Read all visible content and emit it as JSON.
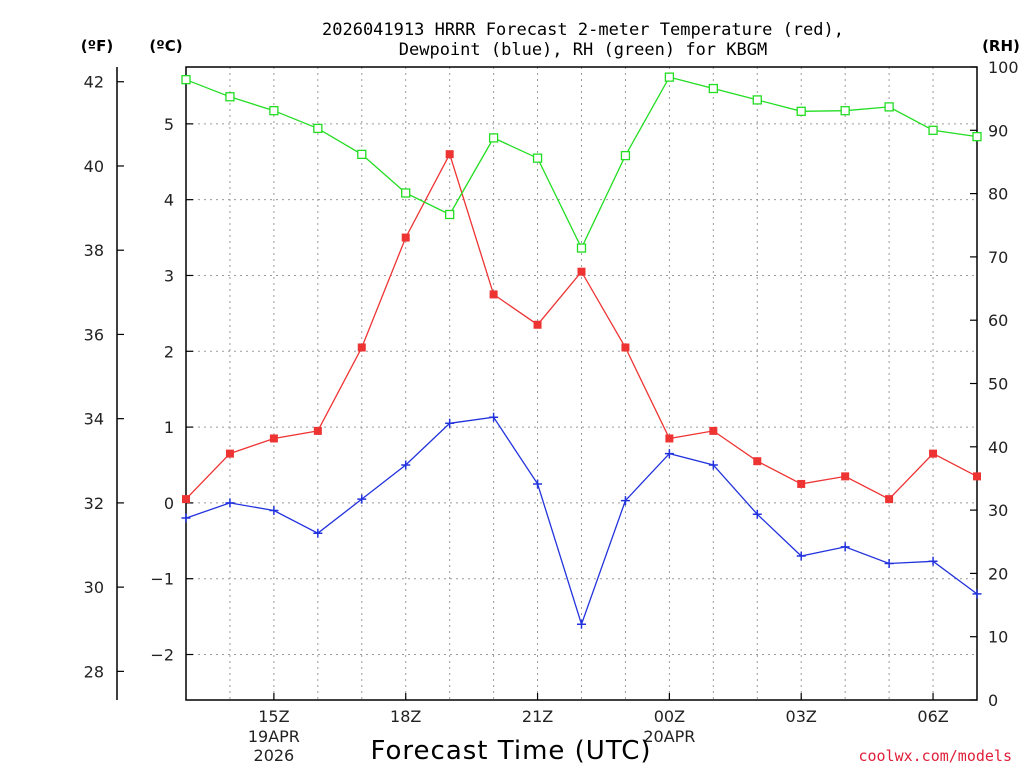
{
  "chart_data": {
    "type": "line",
    "title_line1": "2026041913 HRRR Forecast 2-meter Temperature (red),",
    "title_line2": "Dewpoint (blue), RH (green) for KBGM",
    "xlabel": "Forecast Time (UTC)",
    "credit": "coolwx.com/models",
    "axes": {
      "fahrenheit": {
        "unit_label": "(ºF)",
        "ticks": [
          28,
          30,
          32,
          34,
          36,
          38,
          40,
          42
        ]
      },
      "celsius": {
        "unit_label": "(ºC)",
        "ylim": [
          -2.6,
          5.75
        ],
        "ticks": [
          -2,
          -1,
          0,
          1,
          2,
          3,
          4,
          5
        ]
      },
      "rh": {
        "unit_label": "(RH)",
        "ylim": [
          0,
          100
        ],
        "ticks": [
          0,
          10,
          20,
          30,
          40,
          50,
          60,
          70,
          80,
          90,
          100
        ]
      }
    },
    "x_hours": [
      13,
      14,
      15,
      16,
      17,
      18,
      19,
      20,
      21,
      22,
      23,
      24,
      25,
      26,
      27,
      28,
      29,
      30,
      31
    ],
    "x_range": [
      13,
      31
    ],
    "x_ticks": [
      {
        "hour": 15,
        "label": "15Z",
        "sub1": "19APR",
        "sub2": "2026"
      },
      {
        "hour": 18,
        "label": "18Z",
        "sub1": "",
        "sub2": ""
      },
      {
        "hour": 21,
        "label": "21Z",
        "sub1": "",
        "sub2": ""
      },
      {
        "hour": 24,
        "label": "00Z",
        "sub1": "20APR",
        "sub2": ""
      },
      {
        "hour": 27,
        "label": "03Z",
        "sub1": "",
        "sub2": ""
      },
      {
        "hour": 30,
        "label": "06Z",
        "sub1": "",
        "sub2": ""
      }
    ],
    "series": [
      {
        "name": "2-meter Temperature",
        "color": "#ee3333",
        "axis": "celsius",
        "marker": "filled-square",
        "values": [
          0.05,
          0.65,
          0.85,
          0.95,
          2.05,
          3.5,
          4.6,
          2.75,
          2.35,
          3.05,
          2.05,
          0.85,
          0.95,
          0.55,
          0.25,
          0.35,
          0.05,
          0.65,
          0.35
        ]
      },
      {
        "name": "Dewpoint",
        "color": "#2233dd",
        "axis": "celsius",
        "marker": "plus",
        "values": [
          -0.2,
          0.0,
          -0.1,
          -0.4,
          0.05,
          0.5,
          1.05,
          1.13,
          0.25,
          -1.6,
          0.03,
          0.65,
          0.5,
          -0.15,
          -0.7,
          -0.58,
          -0.8,
          -0.77,
          -1.2
        ]
      },
      {
        "name": "RH",
        "color": "#22dd22",
        "axis": "rh",
        "marker": "open-square",
        "values": [
          98,
          95.3,
          93.1,
          90.3,
          86.2,
          80.1,
          76.7,
          88.8,
          85.6,
          71.4,
          86,
          98.4,
          96.6,
          94.8,
          93,
          93.1,
          93.7,
          90,
          89
        ]
      }
    ]
  }
}
